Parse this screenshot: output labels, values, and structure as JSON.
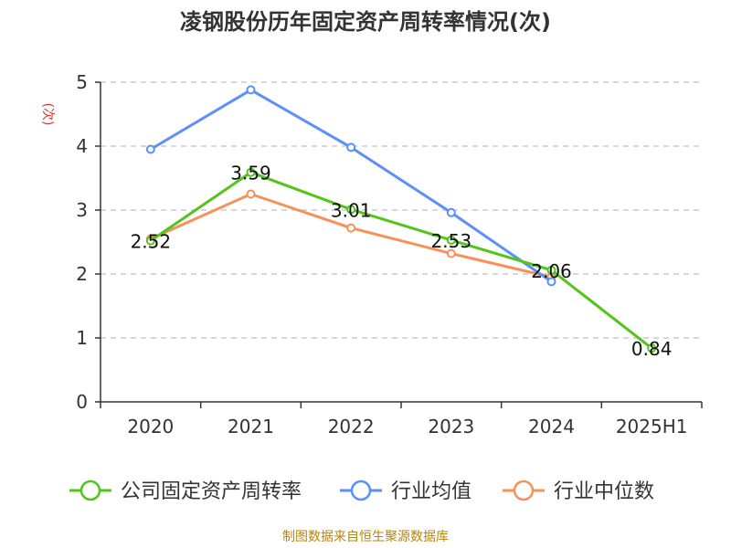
{
  "chart_data": {
    "type": "line",
    "title": "凌钢股份历年固定资产周转率情况(次)",
    "ylabel": "(次)",
    "xlabel": "",
    "categories": [
      "2020",
      "2021",
      "2022",
      "2023",
      "2024",
      "2025H1"
    ],
    "ylim": [
      0,
      5
    ],
    "yticks": [
      0,
      1,
      2,
      3,
      4,
      5
    ],
    "grid": true,
    "legend_position": "bottom",
    "series": [
      {
        "name": "公司固定资产周转率",
        "color": "#52c41a",
        "values": [
          2.52,
          3.59,
          3.01,
          2.53,
          2.06,
          0.84
        ],
        "show_labels": true
      },
      {
        "name": "行业均值",
        "color": "#5b8ff9",
        "values": [
          3.95,
          4.88,
          3.98,
          2.96,
          1.88,
          null
        ],
        "show_labels": false
      },
      {
        "name": "行业中位数",
        "color": "#f6915a",
        "values": [
          2.55,
          3.25,
          2.72,
          2.32,
          1.95,
          null
        ],
        "show_labels": false
      }
    ]
  },
  "footer": {
    "source": "制图数据来自恒生聚源数据库"
  }
}
